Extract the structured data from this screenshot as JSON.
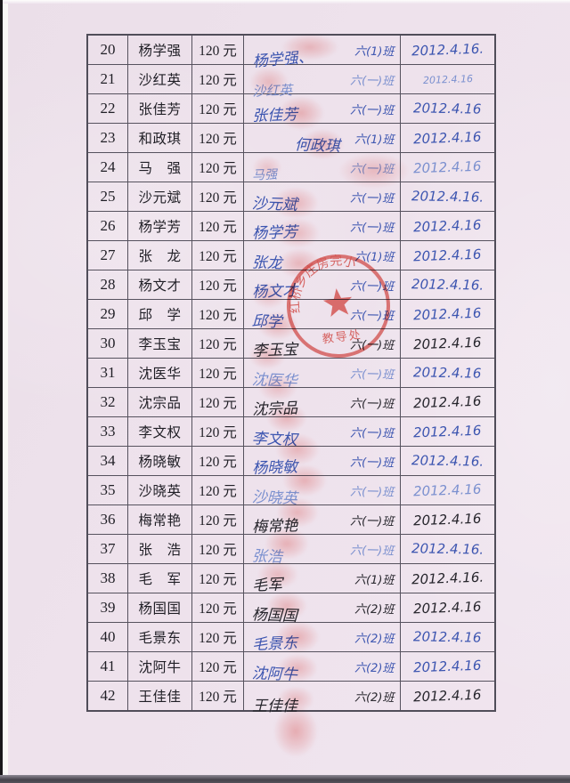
{
  "table": {
    "rows": [
      {
        "no": "20",
        "name": "杨学强",
        "amount": "120 元",
        "signature": "杨学强、",
        "class_label": "六(1)班",
        "date": "2012.4.16.",
        "sig_ink": "blue",
        "date_ink": "blue"
      },
      {
        "no": "21",
        "name": "沙红英",
        "amount": "120 元",
        "signature": "沙红英",
        "class_label": "六(一)班",
        "date": "2012.4.16",
        "sig_ink": "light",
        "date_ink": "light"
      },
      {
        "no": "22",
        "name": "张佳芳",
        "amount": "120 元",
        "signature": "张佳芳",
        "class_label": "六(一)班",
        "date": "2012.4.16",
        "sig_ink": "blue",
        "date_ink": "blue"
      },
      {
        "no": "23",
        "name": "和政琪",
        "amount": "120 元",
        "signature": "何政琪",
        "class_label": "六(1)班",
        "date": "2012.4.16",
        "sig_ink": "blue",
        "date_ink": "blue"
      },
      {
        "no": "24",
        "name": "马　强",
        "amount": "120 元",
        "signature": "马强",
        "class_label": "六(一)班",
        "date": "2012.4.16",
        "sig_ink": "light",
        "date_ink": "light"
      },
      {
        "no": "25",
        "name": "沙元斌",
        "amount": "120 元",
        "signature": "沙元斌",
        "class_label": "六(一)班",
        "date": "2012.4.16.",
        "sig_ink": "blue",
        "date_ink": "blue"
      },
      {
        "no": "26",
        "name": "杨学芳",
        "amount": "120 元",
        "signature": "杨学芳",
        "class_label": "六(一)班",
        "date": "2012.4.16",
        "sig_ink": "blue",
        "date_ink": "blue"
      },
      {
        "no": "27",
        "name": "张　龙",
        "amount": "120 元",
        "signature": "张龙",
        "class_label": "六(1)班",
        "date": "2012.4.16",
        "sig_ink": "blue",
        "date_ink": "blue"
      },
      {
        "no": "28",
        "name": "杨文才",
        "amount": "120 元",
        "signature": "杨文才",
        "class_label": "六(一)班",
        "date": "2012.4.16.",
        "sig_ink": "blue",
        "date_ink": "blue"
      },
      {
        "no": "29",
        "name": "邱　学",
        "amount": "120 元",
        "signature": "邱学",
        "class_label": "六(一)班",
        "date": "2012.4.16",
        "sig_ink": "blue",
        "date_ink": "blue"
      },
      {
        "no": "30",
        "name": "李玉宝",
        "amount": "120 元",
        "signature": "李玉宝",
        "class_label": "六(一)班",
        "date": "2012.4.16",
        "sig_ink": "black",
        "date_ink": "black"
      },
      {
        "no": "31",
        "name": "沈医华",
        "amount": "120 元",
        "signature": "沈医华",
        "class_label": "六(一)班",
        "date": "2012.4.16",
        "sig_ink": "light",
        "date_ink": "blue"
      },
      {
        "no": "32",
        "name": "沈宗品",
        "amount": "120 元",
        "signature": "沈宗品",
        "class_label": "六(一)班",
        "date": "2012.4.16",
        "sig_ink": "black",
        "date_ink": "black"
      },
      {
        "no": "33",
        "name": "李文权",
        "amount": "120 元",
        "signature": "李文权",
        "class_label": "六(一)班",
        "date": "2012.4.16",
        "sig_ink": "blue",
        "date_ink": "blue"
      },
      {
        "no": "34",
        "name": "杨晓敏",
        "amount": "120 元",
        "signature": "杨晓敏",
        "class_label": "六(一)班",
        "date": "2012.4.16.",
        "sig_ink": "blue",
        "date_ink": "blue"
      },
      {
        "no": "35",
        "name": "沙晓英",
        "amount": "120 元",
        "signature": "沙晓英",
        "class_label": "六(一)班",
        "date": "2012.4.16",
        "sig_ink": "light",
        "date_ink": "light"
      },
      {
        "no": "36",
        "name": "梅常艳",
        "amount": "120 元",
        "signature": "梅常艳",
        "class_label": "六(一)班",
        "date": "2012.4.16",
        "sig_ink": "black",
        "date_ink": "black"
      },
      {
        "no": "37",
        "name": "张　浩",
        "amount": "120 元",
        "signature": "张浩",
        "class_label": "六(一)班",
        "date": "2012.4.16.",
        "sig_ink": "light",
        "date_ink": "blue"
      },
      {
        "no": "38",
        "name": "毛　军",
        "amount": "120 元",
        "signature": "毛军",
        "class_label": "六(1)班",
        "date": "2012.4.16.",
        "sig_ink": "black",
        "date_ink": "black"
      },
      {
        "no": "39",
        "name": "杨国国",
        "amount": "120 元",
        "signature": "杨国国",
        "class_label": "六(2)班",
        "date": "2012.4.16",
        "sig_ink": "black",
        "date_ink": "black"
      },
      {
        "no": "40",
        "name": "毛景东",
        "amount": "120 元",
        "signature": "毛景东",
        "class_label": "六(2)班",
        "date": "2012.4.16",
        "sig_ink": "blue",
        "date_ink": "blue"
      },
      {
        "no": "41",
        "name": "沈阿牛",
        "amount": "120 元",
        "signature": "沈阿牛",
        "class_label": "六(2)班",
        "date": "2012.4.16",
        "sig_ink": "blue",
        "date_ink": "blue"
      },
      {
        "no": "42",
        "name": "王佳佳",
        "amount": "120 元",
        "signature": "王佳佳",
        "class_label": "六(2)班",
        "date": "2012.4.16",
        "sig_ink": "black",
        "date_ink": "black"
      }
    ]
  },
  "stamp": {
    "arc_text": "红桥乡庄房完小",
    "bottom_text": "教导处",
    "color": "#df4b43"
  }
}
